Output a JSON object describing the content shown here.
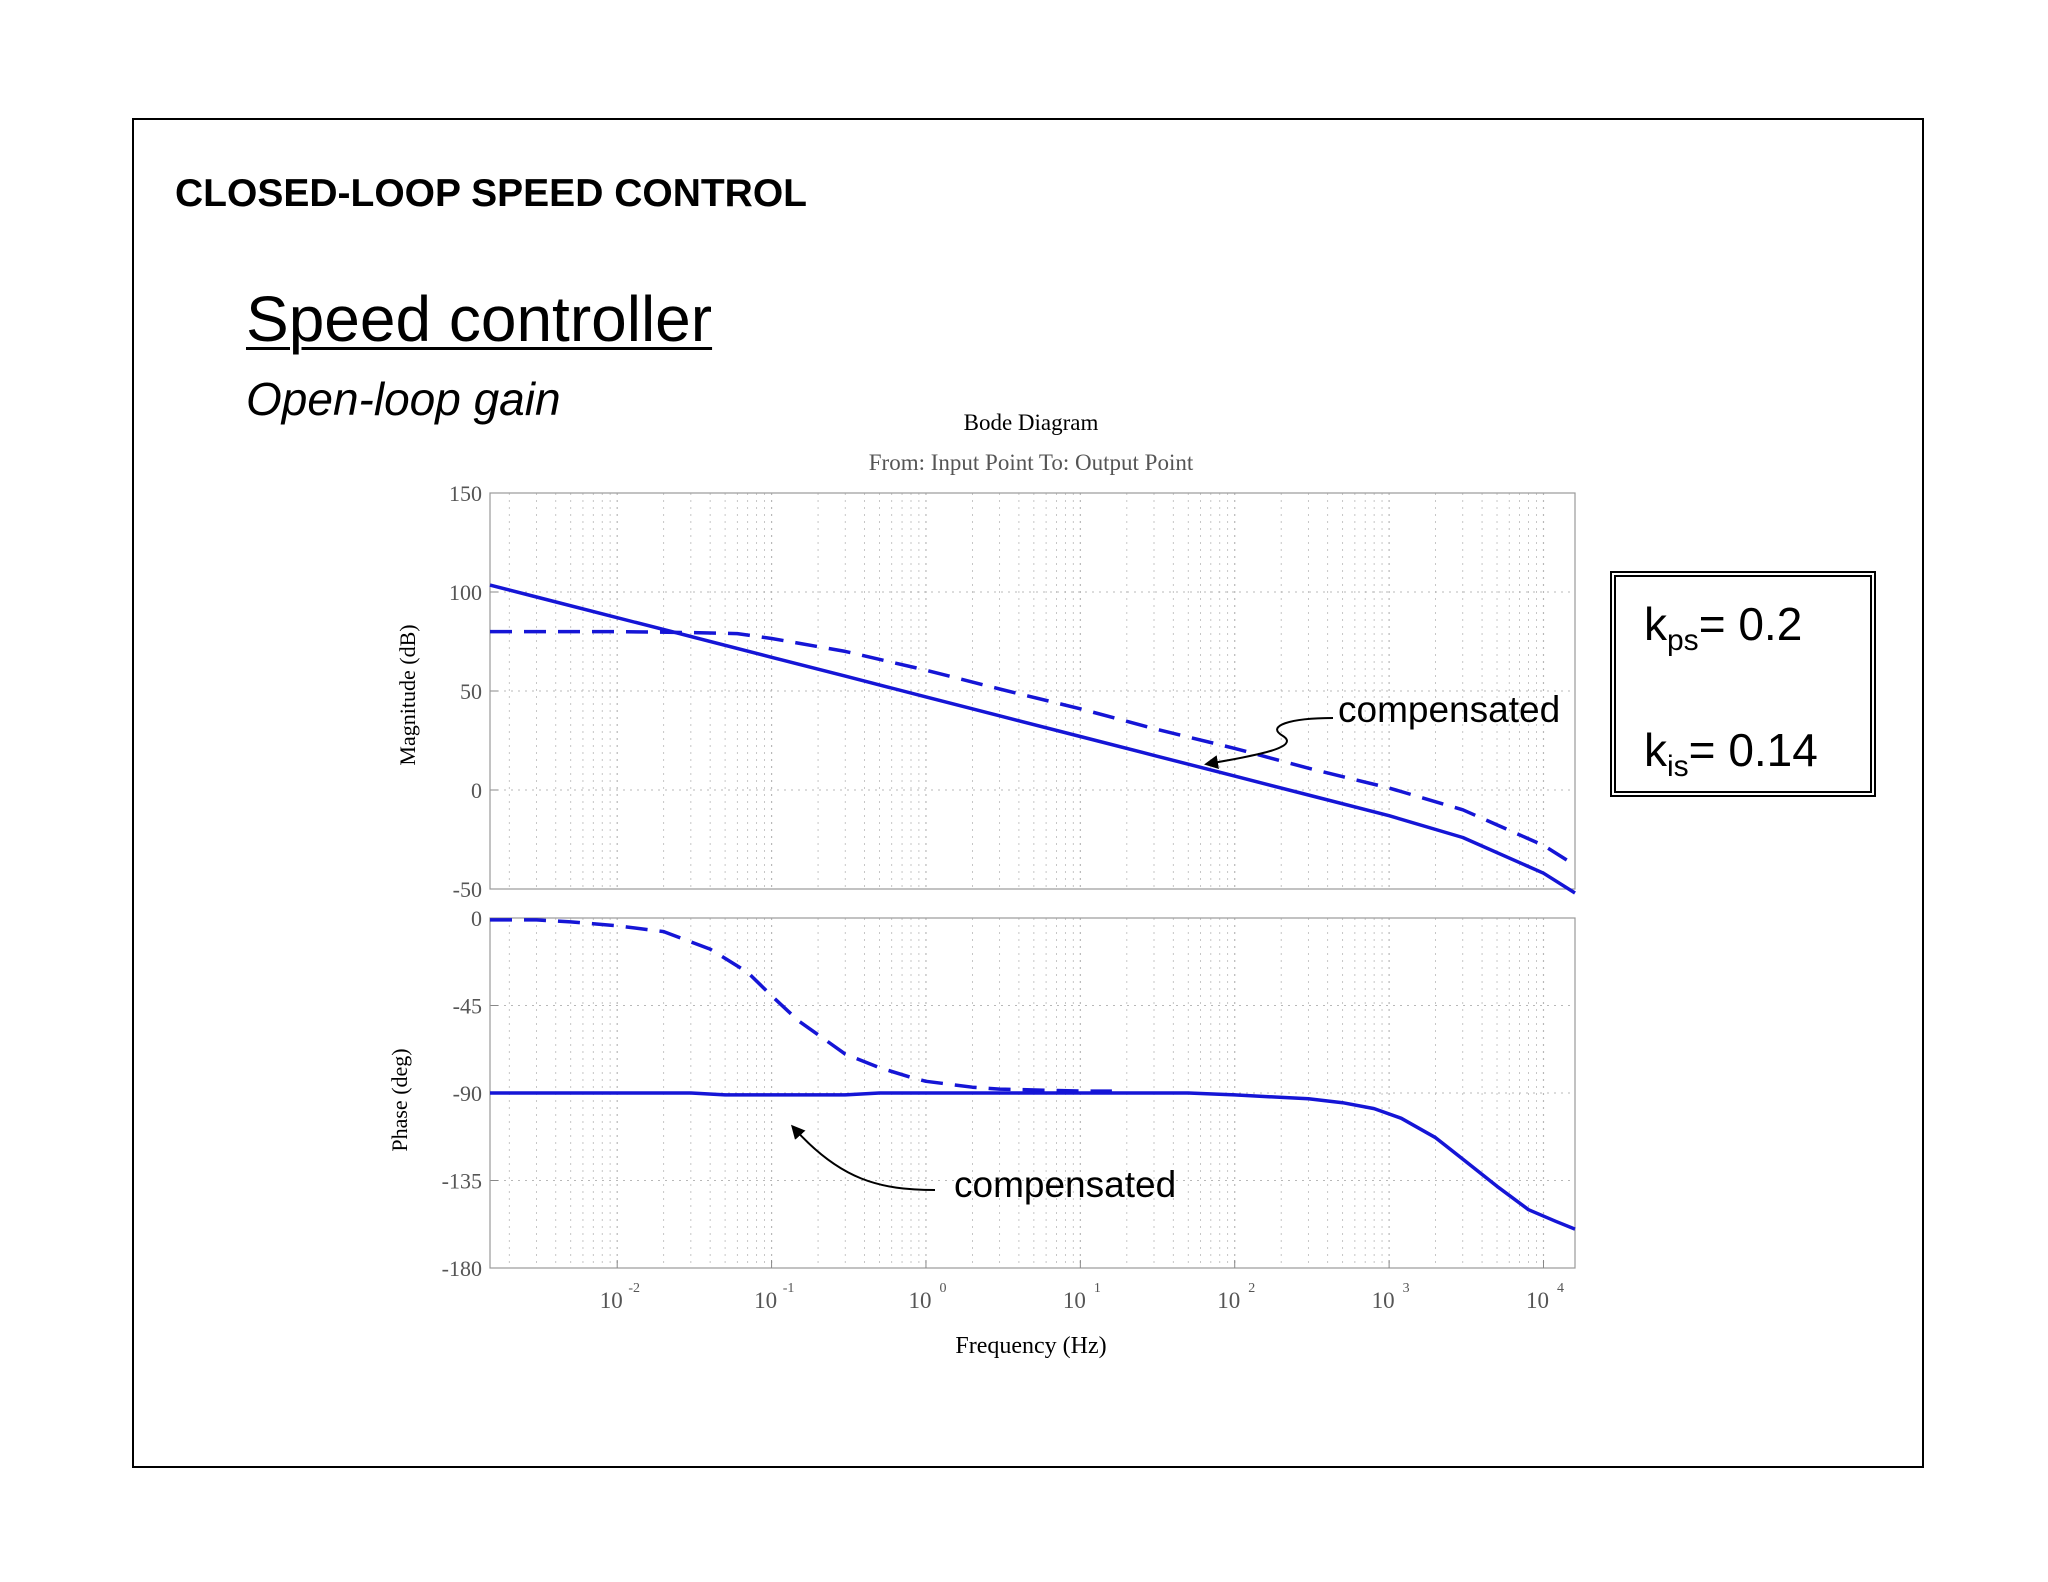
{
  "header": {
    "section_title": "CLOSED-LOOP SPEED CONTROL",
    "slide_title": "Speed controller",
    "slide_subtitle": "Open-loop gain"
  },
  "params": {
    "kp_symbol": "k",
    "kp_sub": "ps",
    "kp_value": "= 0.2",
    "ki_symbol": "k",
    "ki_sub": "is",
    "ki_value": "= 0.14"
  },
  "annotations": {
    "magnitude_label": "compensated",
    "phase_label": "compensated"
  },
  "colors": {
    "series": "#1515d6",
    "grid": "#b8b8b8",
    "axis_text": "#555555"
  },
  "chart_data": {
    "type": "line",
    "title": "Bode Diagram",
    "subtitle": "From: Input Point  To: Output Point",
    "xlabel": "Frequency  (Hz)",
    "x_scale": "log",
    "xlim": [
      0.0015,
      16000
    ],
    "x_ticks": [
      0.01,
      0.1,
      1,
      10,
      100,
      1000,
      10000
    ],
    "x_tick_labels": [
      {
        "base": "10",
        "exp": "-2"
      },
      {
        "base": "10",
        "exp": "-1"
      },
      {
        "base": "10",
        "exp": "0"
      },
      {
        "base": "10",
        "exp": "1"
      },
      {
        "base": "10",
        "exp": "2"
      },
      {
        "base": "10",
        "exp": "3"
      },
      {
        "base": "10",
        "exp": "4"
      }
    ],
    "grid": true,
    "panels": [
      {
        "name": "magnitude",
        "ylabel": "Magnitude (dB)",
        "ylim": [
          -50,
          150
        ],
        "y_ticks": [
          150,
          100,
          50,
          0,
          -50
        ],
        "series": [
          {
            "style": "solid",
            "x": [
              0.0015,
              0.003,
              0.01,
              0.03,
              0.1,
              0.3,
              1,
              3,
              10,
              30,
              100,
              300,
              1000,
              3000,
              10000,
              16000
            ],
            "y": [
              103.5,
              97.5,
              87,
              77.5,
              67,
              57.5,
              47,
              37.5,
              27,
              17.5,
              7,
              -2.5,
              -13,
              -24,
              -42,
              -52
            ]
          },
          {
            "style": "dashed",
            "x": [
              0.0015,
              0.01,
              0.03,
              0.06,
              0.1,
              0.3,
              1,
              3,
              10,
              30,
              100,
              300,
              1000,
              3000,
              10000,
              16000
            ],
            "y": [
              80,
              80,
              79.5,
              79,
              76.5,
              70,
              60.5,
              51,
              41,
              31,
              21,
              11,
              1,
              -10,
              -28,
              -38
            ]
          }
        ]
      },
      {
        "name": "phase",
        "ylabel": "Phase (deg)",
        "ylim": [
          -180,
          0
        ],
        "y_ticks": [
          0,
          -45,
          -90,
          -135,
          -180
        ],
        "series": [
          {
            "style": "solid",
            "x": [
              0.0015,
              0.03,
              0.05,
              0.3,
              0.5,
              1,
              10,
              50,
              100,
              300,
              500,
              800,
              1200,
              2000,
              3000,
              5000,
              8000,
              12000,
              16000
            ],
            "y": [
              -90,
              -90,
              -91,
              -91,
              -90,
              -90,
              -90,
              -90,
              -91,
              -93,
              -95,
              -98,
              -103,
              -113,
              -124,
              -138,
              -150,
              -156,
              -160
            ]
          },
          {
            "style": "dashed",
            "x": [
              0.0015,
              0.003,
              0.005,
              0.01,
              0.02,
              0.04,
              0.07,
              0.1,
              0.15,
              0.2,
              0.3,
              0.5,
              0.8,
              1,
              2,
              3,
              10,
              16
            ],
            "y": [
              -1,
              -1,
              -2,
              -4,
              -7,
              -16,
              -28,
              -40,
              -53,
              -60,
              -70,
              -77,
              -82,
              -84,
              -87,
              -88,
              -89,
              -89
            ]
          }
        ]
      }
    ]
  }
}
